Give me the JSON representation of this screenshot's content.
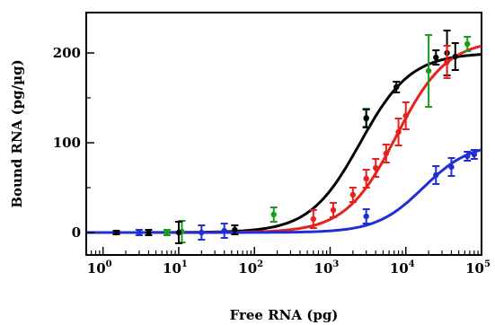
{
  "chart_data": {
    "type": "scatter",
    "xlabel": "Free RNA (pg)",
    "ylabel": "Bound RNA (pg/µg)",
    "x_scale": "log",
    "xlim": [
      0.6,
      100000
    ],
    "ylim": [
      -25,
      245
    ],
    "x_ticks": [
      {
        "value": 1,
        "base": "10",
        "exp": "0"
      },
      {
        "value": 10,
        "base": "10",
        "exp": "1"
      },
      {
        "value": 100,
        "base": "10",
        "exp": "2"
      },
      {
        "value": 1000,
        "base": "10",
        "exp": "3"
      },
      {
        "value": 10000,
        "base": "10",
        "exp": "4"
      },
      {
        "value": 100000,
        "base": "10",
        "exp": "5"
      }
    ],
    "y_ticks": [
      {
        "value": 0,
        "label": "0"
      },
      {
        "value": 100,
        "label": "100"
      },
      {
        "value": 200,
        "label": "200"
      }
    ],
    "grid": false,
    "series": [
      {
        "color": "#1a9c1a",
        "points": [
          {
            "x": 7,
            "y": 0,
            "err": 3
          },
          {
            "x": 11,
            "y": 1,
            "err": 12
          },
          {
            "x": 180,
            "y": 20,
            "err": 8
          },
          {
            "x": 3000,
            "y": 128,
            "err": 10
          },
          {
            "x": 20000,
            "y": 180,
            "err": 40
          },
          {
            "x": 65000,
            "y": 210,
            "err": 8
          }
        ]
      },
      {
        "color": "#000000",
        "fit": {
          "max": 200,
          "k": 2500,
          "n": 1.3
        },
        "points": [
          {
            "x": 1.5,
            "y": 0,
            "err": 2
          },
          {
            "x": 4,
            "y": 0,
            "err": 3
          },
          {
            "x": 10,
            "y": 0,
            "err": 12
          },
          {
            "x": 55,
            "y": 3,
            "err": 5
          },
          {
            "x": 3000,
            "y": 127,
            "err": 10
          },
          {
            "x": 7500,
            "y": 162,
            "err": 6
          },
          {
            "x": 25000,
            "y": 195,
            "err": 8
          },
          {
            "x": 35000,
            "y": 200,
            "err": 25
          },
          {
            "x": 45000,
            "y": 196,
            "err": 15
          }
        ]
      },
      {
        "color": "#e8201c",
        "fit": {
          "max": 215,
          "k": 7500,
          "n": 1.3
        },
        "points": [
          {
            "x": 600,
            "y": 15,
            "err": 10
          },
          {
            "x": 1100,
            "y": 25,
            "err": 8
          },
          {
            "x": 2000,
            "y": 42,
            "err": 8
          },
          {
            "x": 3000,
            "y": 60,
            "err": 10
          },
          {
            "x": 4000,
            "y": 72,
            "err": 10
          },
          {
            "x": 5500,
            "y": 88,
            "err": 10
          },
          {
            "x": 8000,
            "y": 112,
            "err": 15
          },
          {
            "x": 10000,
            "y": 130,
            "err": 15
          },
          {
            "x": 35000,
            "y": 190,
            "err": 18
          }
        ]
      },
      {
        "color": "#1f2fd6",
        "fit": {
          "max": 100,
          "k": 17000,
          "n": 1.4
        },
        "points": [
          {
            "x": 3,
            "y": 0,
            "err": 3
          },
          {
            "x": 20,
            "y": 0,
            "err": 8
          },
          {
            "x": 40,
            "y": 2,
            "err": 8
          },
          {
            "x": 3000,
            "y": 18,
            "err": 8
          },
          {
            "x": 25000,
            "y": 64,
            "err": 10
          },
          {
            "x": 40000,
            "y": 73,
            "err": 10
          },
          {
            "x": 65000,
            "y": 85,
            "err": 5
          },
          {
            "x": 80000,
            "y": 87,
            "err": 5
          }
        ]
      }
    ]
  }
}
